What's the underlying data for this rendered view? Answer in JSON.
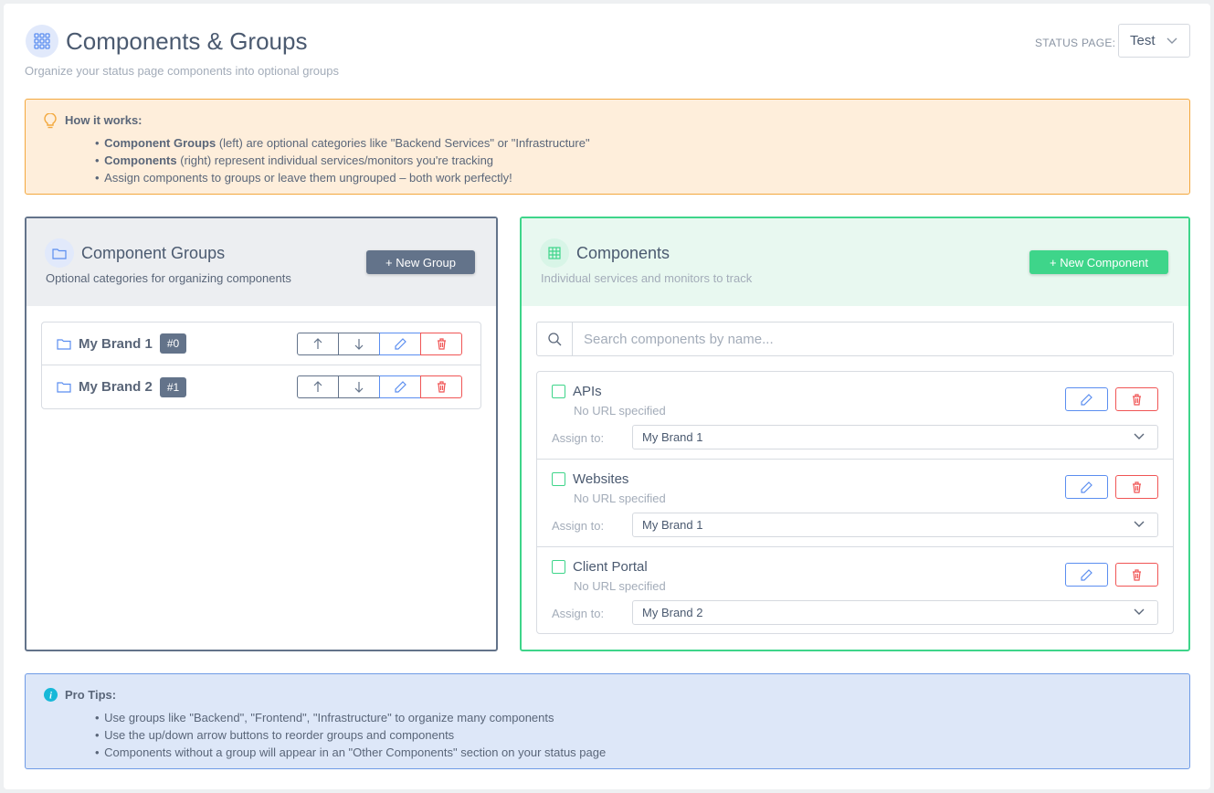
{
  "header": {
    "title": "Components & Groups",
    "subtitle": "Organize your status page components into optional groups",
    "status_page_label": "STATUS PAGE:",
    "status_page_value": "Test"
  },
  "how_it_works": {
    "title": "How it works:",
    "items": [
      {
        "bold": "Component Groups",
        "text": " (left) are optional categories like \"Backend Services\" or \"Infrastructure\""
      },
      {
        "bold": "Components",
        "text": " (right) represent individual services/monitors you're tracking"
      },
      {
        "bold": "",
        "text": "Assign components to groups or leave them ungrouped – both work perfectly!"
      }
    ]
  },
  "groups_panel": {
    "title": "Component Groups",
    "subtitle": "Optional categories for organizing components",
    "new_button": "+ New Group",
    "groups": [
      {
        "name": "My Brand 1",
        "badge": "#0"
      },
      {
        "name": "My Brand 2",
        "badge": "#1"
      }
    ]
  },
  "components_panel": {
    "title": "Components",
    "subtitle": "Individual services and monitors to track",
    "new_button": "+ New Component",
    "search_placeholder": "Search components by name...",
    "assign_label": "Assign to:",
    "components": [
      {
        "name": "APIs",
        "url": "No URL specified",
        "group": "My Brand 1"
      },
      {
        "name": "Websites",
        "url": "No URL specified",
        "group": "My Brand 1"
      },
      {
        "name": "Client Portal",
        "url": "No URL specified",
        "group": "My Brand 2"
      }
    ]
  },
  "pro_tips": {
    "title": "Pro Tips:",
    "items": [
      "Use groups like \"Backend\", \"Frontend\", \"Infrastructure\" to organize many components",
      "Use the up/down arrow buttons to reorder groups and components",
      "Components without a group will appear in an \"Other Components\" section on your status page"
    ]
  },
  "colors": {
    "accent_green": "#3ed58a",
    "slate": "#63738a",
    "blue": "#5b8ef0",
    "red": "#f05555",
    "warning": "#f3a83d"
  }
}
